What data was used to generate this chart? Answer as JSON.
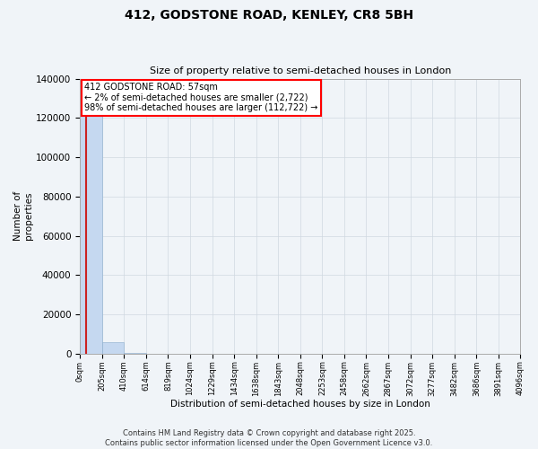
{
  "title": "412, GODSTONE ROAD, KENLEY, CR8 5BH",
  "subtitle": "Size of property relative to semi-detached houses in London",
  "xlabel": "Distribution of semi-detached houses by size in London",
  "ylabel": "Number of\nproperties",
  "annotation_title": "412 GODSTONE ROAD: 57sqm",
  "annotation_line1": "← 2% of semi-detached houses are smaller (2,722)",
  "annotation_line2": "98% of semi-detached houses are larger (112,722) →",
  "footer_line1": "Contains HM Land Registry data © Crown copyright and database right 2025.",
  "footer_line2": "Contains public sector information licensed under the Open Government Licence v3.0.",
  "property_size": 57,
  "bin_edges": [
    0,
    205,
    410,
    614,
    819,
    1024,
    1229,
    1434,
    1638,
    1843,
    2048,
    2253,
    2458,
    2662,
    2867,
    3072,
    3277,
    3482,
    3686,
    3891,
    4096
  ],
  "bin_counts": [
    130000,
    6000,
    500,
    100,
    30,
    10,
    5,
    3,
    2,
    2,
    1,
    1,
    1,
    1,
    1,
    1,
    1,
    1,
    1,
    1
  ],
  "bar_color": "#c5d8f0",
  "highlight_color": "#cc2222",
  "background_color": "#f0f4f8",
  "ylim": [
    0,
    140000
  ],
  "yticks": [
    0,
    20000,
    40000,
    60000,
    80000,
    100000,
    120000,
    140000
  ],
  "title_fontsize": 10,
  "subtitle_fontsize": 8
}
